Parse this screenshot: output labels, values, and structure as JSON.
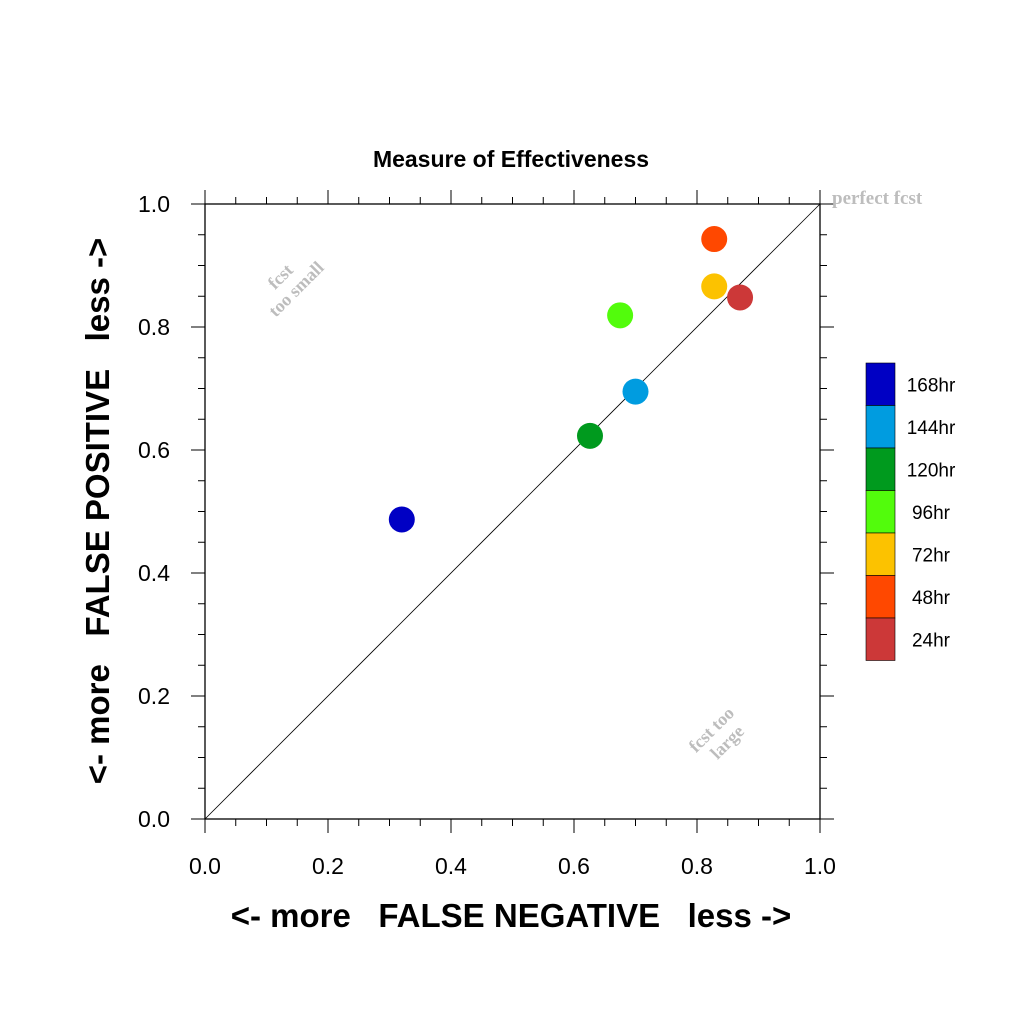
{
  "chart_data": {
    "type": "scatter",
    "title": "Measure of Effectiveness",
    "xlabel": "<- more   FALSE NEGATIVE   less ->",
    "ylabel": "<- more   FALSE POSITIVE   less ->",
    "xlim": [
      0.0,
      1.0
    ],
    "ylim": [
      0.0,
      1.0
    ],
    "x_ticks": [
      "0.0",
      "0.2",
      "0.4",
      "0.6",
      "0.8",
      "1.0"
    ],
    "y_ticks": [
      "0.0",
      "0.2",
      "0.4",
      "0.6",
      "0.8",
      "1.0"
    ],
    "grid": false,
    "diagonal_reference_line": true,
    "legend_position": "right",
    "annotations": {
      "perfect": "perfect fcst",
      "too_small": [
        "fcst",
        "too small"
      ],
      "too_large": [
        "fcst too",
        "large"
      ]
    },
    "series": [
      {
        "name": "168hr",
        "color": "#0000c4",
        "x": 0.32,
        "y": 0.487
      },
      {
        "name": "144hr",
        "color": "#009ce0",
        "x": 0.7,
        "y": 0.695
      },
      {
        "name": "120hr",
        "color": "#009a1e",
        "x": 0.626,
        "y": 0.623
      },
      {
        "name": "96hr",
        "color": "#52fc0c",
        "x": 0.675,
        "y": 0.819
      },
      {
        "name": "72hr",
        "color": "#fcc200",
        "x": 0.828,
        "y": 0.866
      },
      {
        "name": "48hr",
        "color": "#ff4800",
        "x": 0.828,
        "y": 0.943
      },
      {
        "name": "24hr",
        "color": "#cc3838",
        "x": 0.87,
        "y": 0.848
      }
    ]
  }
}
